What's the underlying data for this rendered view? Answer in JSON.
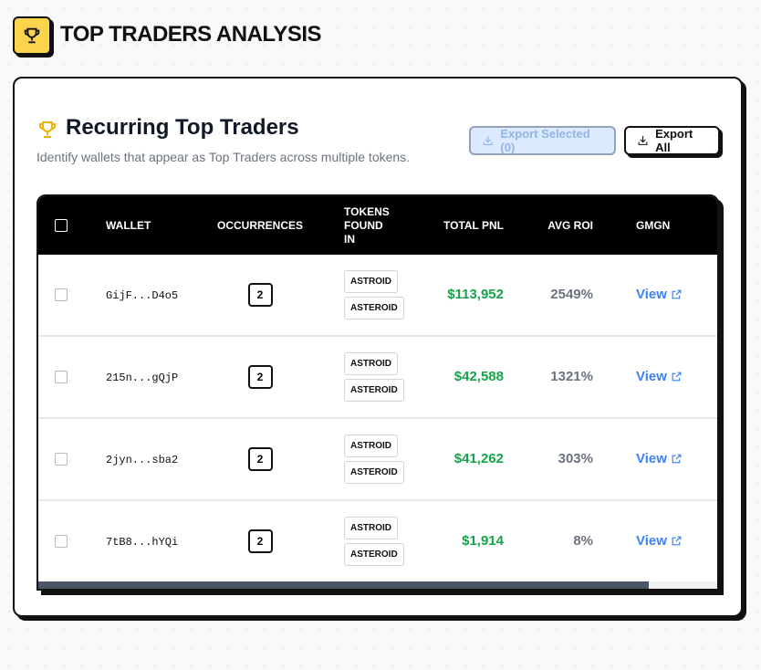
{
  "header": {
    "title": "TOP TRADERS ANALYSIS"
  },
  "panel": {
    "title": "Recurring Top Traders",
    "subtitle": "Identify wallets that appear as Top Traders across multiple tokens.",
    "buttons": [
      "Export Selected (0)",
      "Export All"
    ]
  },
  "table": {
    "columns": [
      "WALLET",
      "OCCURRENCES",
      "TOKENS FOUND IN",
      "TOTAL PNL",
      "AVG ROI",
      "GMGN"
    ],
    "rows": [
      {
        "wallet": "GijF...D4o5",
        "occurrences": "2",
        "tokens": [
          "ASTROID",
          "ASTEROID"
        ],
        "pnl": "$113,952",
        "roi": "2549%",
        "link": "View"
      },
      {
        "wallet": "215n...gQjP",
        "occurrences": "2",
        "tokens": [
          "ASTROID",
          "ASTEROID"
        ],
        "pnl": "$42,588",
        "roi": "1321%",
        "link": "View"
      },
      {
        "wallet": "2jyn...sba2",
        "occurrences": "2",
        "tokens": [
          "ASTROID",
          "ASTEROID"
        ],
        "pnl": "$41,262",
        "roi": "303%",
        "link": "View"
      },
      {
        "wallet": "7tB8...hYQi",
        "occurrences": "2",
        "tokens": [
          "ASTROID",
          "ASTEROID"
        ],
        "pnl": "$1,914",
        "roi": "8%",
        "link": "View"
      }
    ]
  }
}
